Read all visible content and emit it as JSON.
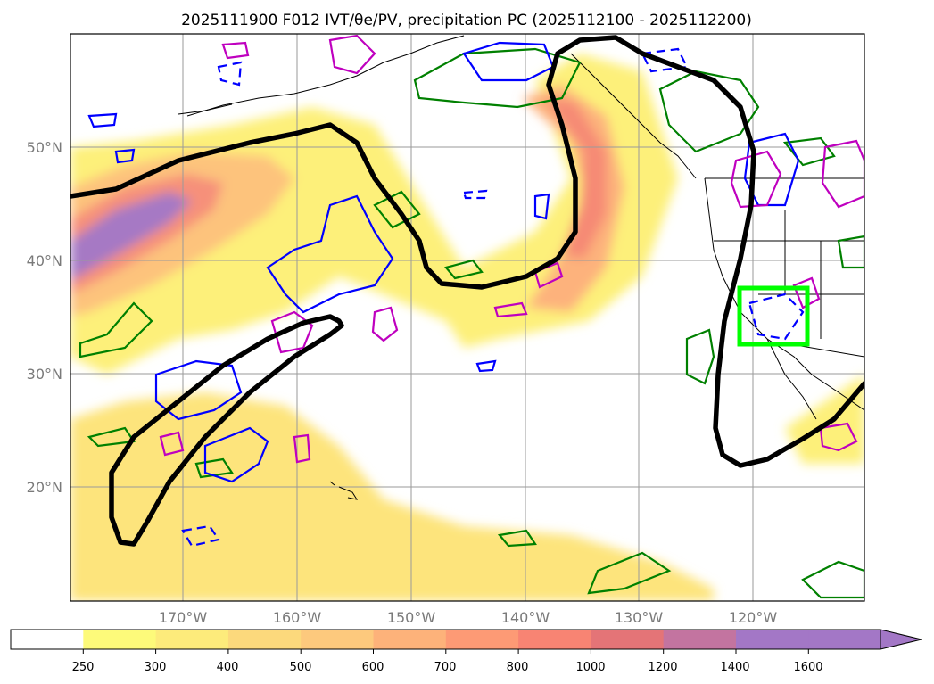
{
  "title": "2025111900 F012 IVT/θe/PV, precipitation PC (2025112100 - 2025112200)",
  "map": {
    "lat_ticks": [
      "50°N",
      "40°N",
      "30°N",
      "20°N"
    ],
    "lon_ticks": [
      "170°W",
      "160°W",
      "150°W",
      "140°W",
      "130°W",
      "120°W"
    ]
  },
  "colorbar": {
    "ticks": [
      "250",
      "300",
      "400",
      "500",
      "600",
      "700",
      "800",
      "1000",
      "1200",
      "1400",
      "1600"
    ],
    "colors": [
      "#ffffff",
      "#fdfa7a",
      "#fdeb7b",
      "#fcd97c",
      "#fdc97d",
      "#fdb27a",
      "#fd9a75",
      "#f88473",
      "#e47477",
      "#c374a0",
      "#a377c6"
    ]
  },
  "legend_colors": {
    "outline": "#000000",
    "contour_green": "#008000",
    "contour_blue": "#0000ff",
    "contour_magenta": "#bf00bf",
    "highlight_box": "#00ff00"
  }
}
